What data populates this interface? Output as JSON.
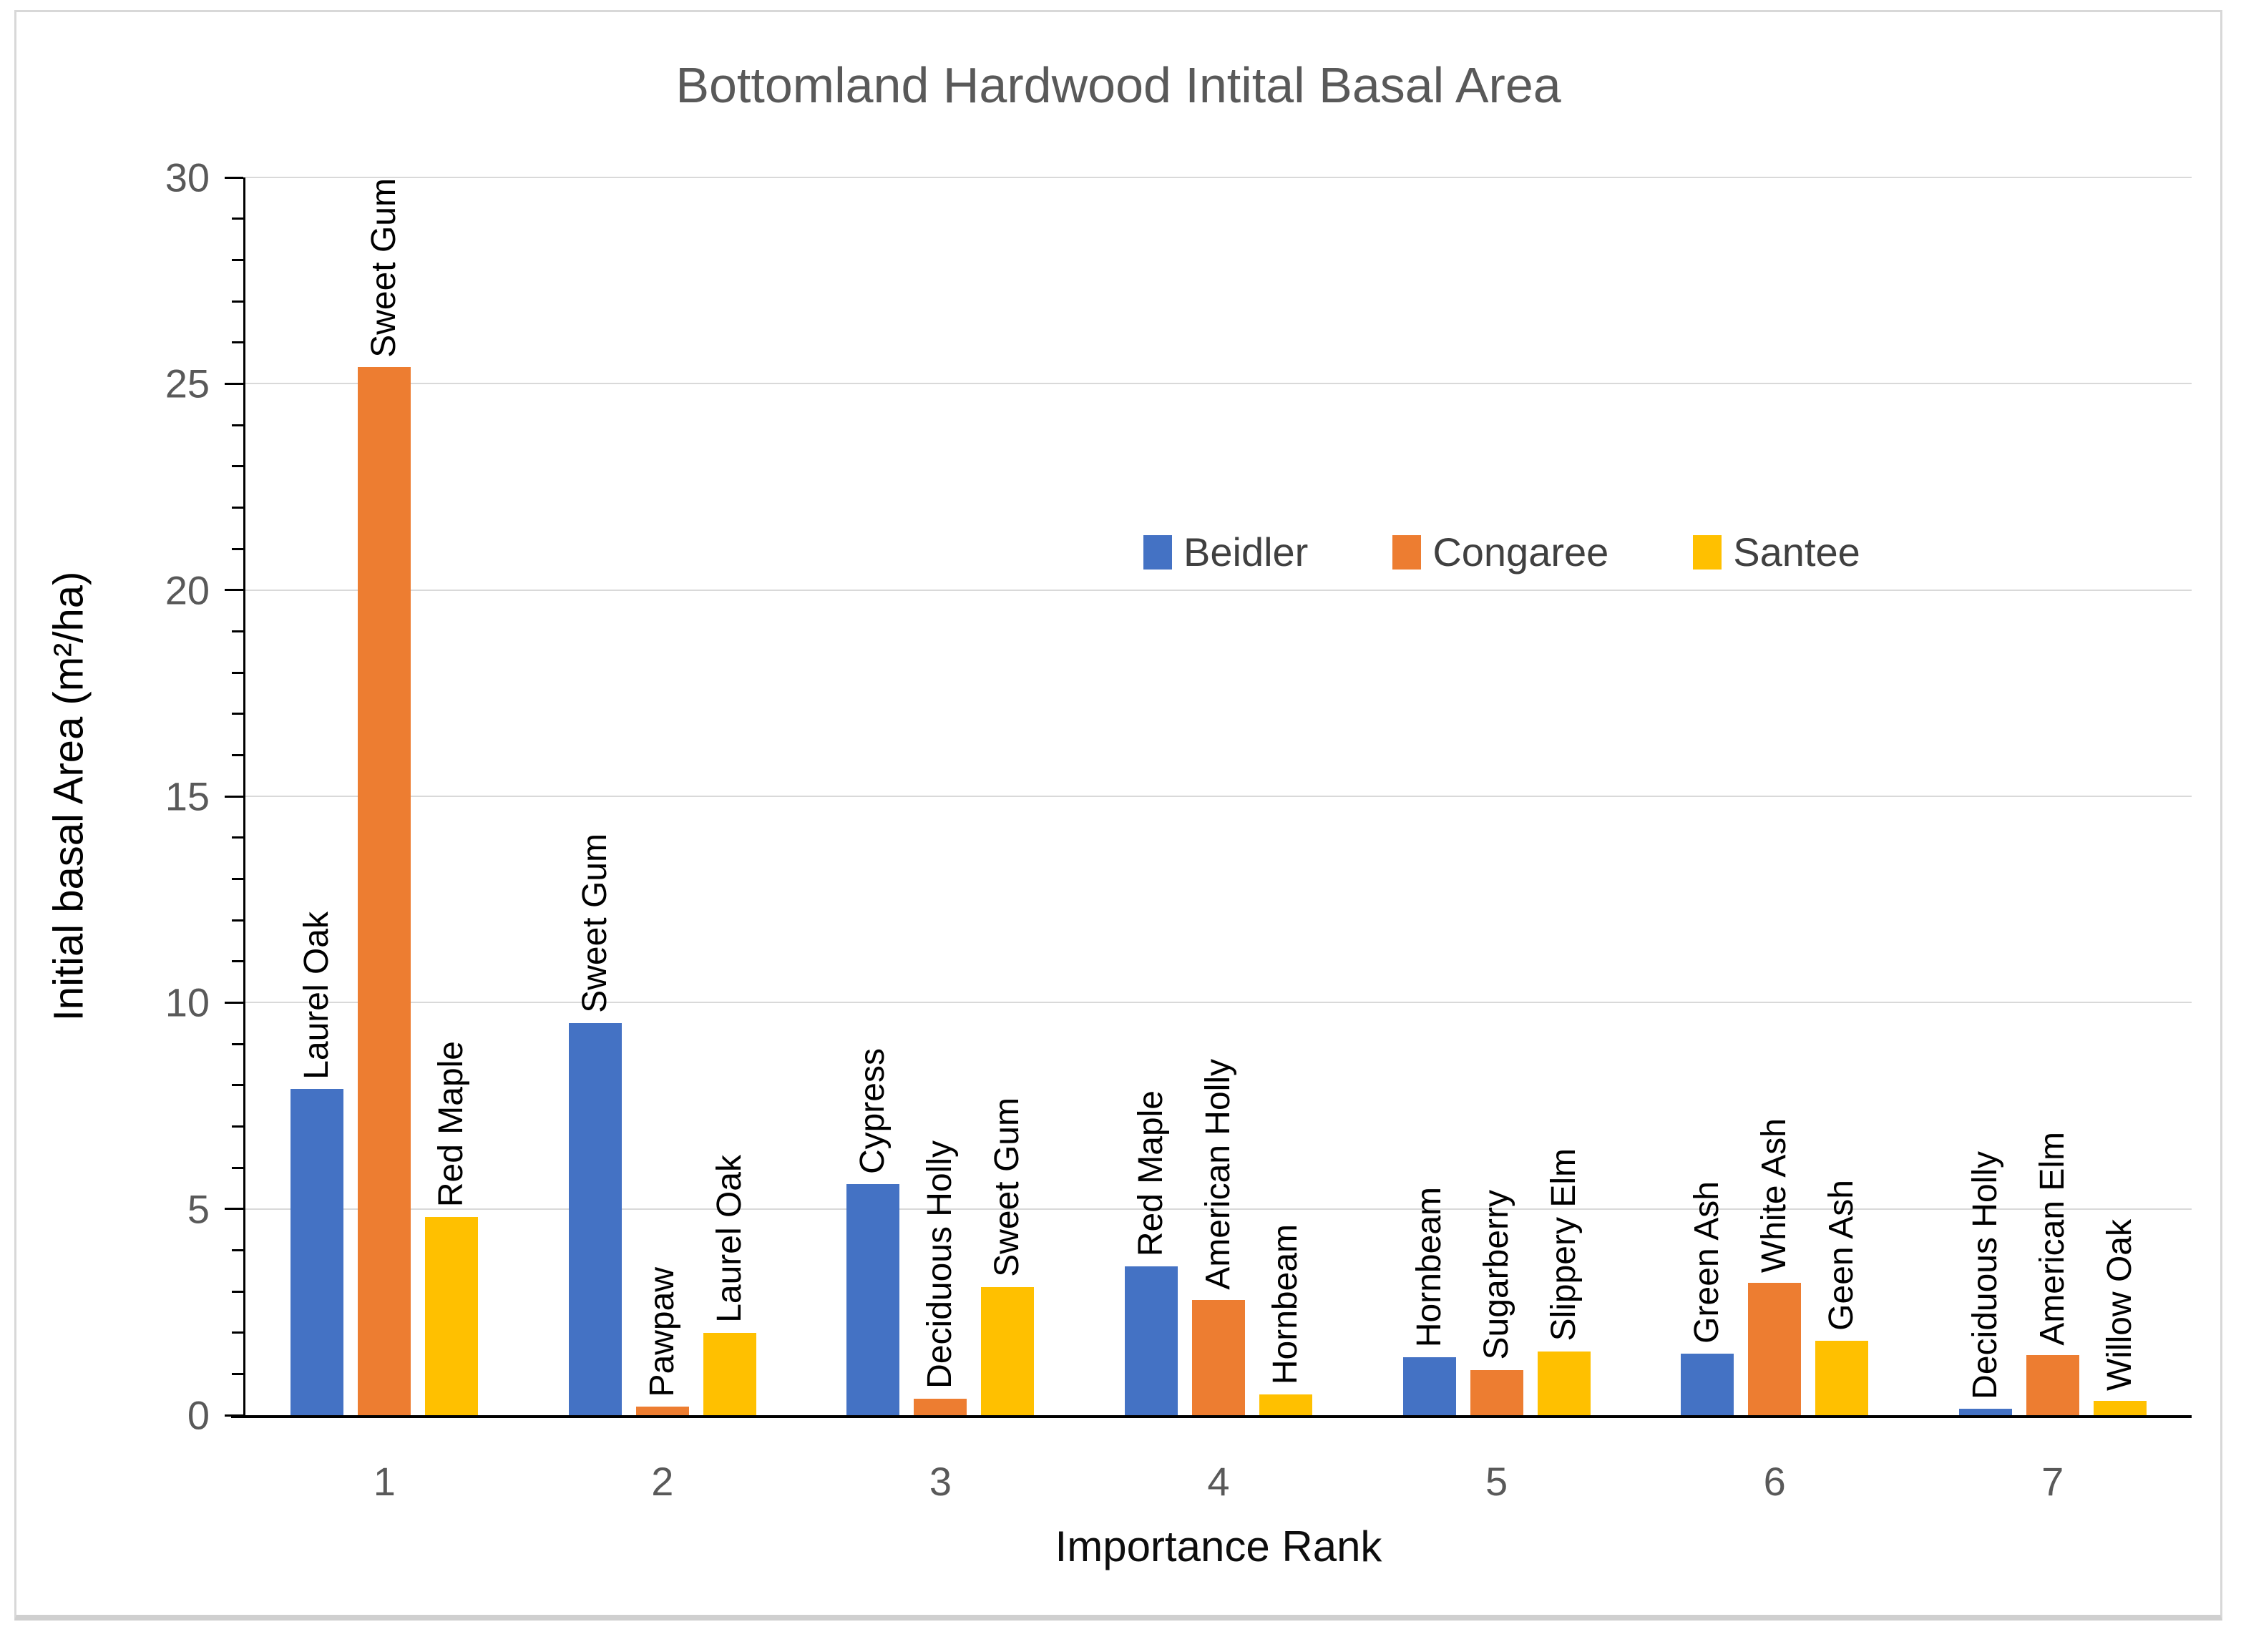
{
  "chart_data": {
    "type": "bar",
    "title": "Bottomland Hardwood Intital Basal Area",
    "xlabel": "Importance Rank",
    "ylabel": "Initial basal Area (m²/ha)",
    "categories": [
      "1",
      "2",
      "3",
      "4",
      "5",
      "6",
      "7"
    ],
    "y_ticks": [
      0,
      5,
      10,
      15,
      20,
      25,
      30
    ],
    "ylim": [
      0,
      30
    ],
    "minor_tick_interval": 1,
    "grid": "horizontal gridlines every 5 units, light gray",
    "legend_position": "inside plot, upper right, horizontal",
    "series": [
      {
        "name": "Beidler",
        "color": "#4472C4",
        "values": [
          7.9,
          9.5,
          5.6,
          3.6,
          1.4,
          1.5,
          0.15
        ],
        "bar_labels": [
          "Laurel Oak",
          "Sweet Gum",
          "Cypress",
          "Red Maple",
          "Hornbeam",
          "Green Ash",
          "Deciduous Holly"
        ]
      },
      {
        "name": "Congaree",
        "color": "#ED7D31",
        "values": [
          25.4,
          0.2,
          0.4,
          2.8,
          1.1,
          3.2,
          1.45
        ],
        "bar_labels": [
          "Sweet Gum",
          "Pawpaw",
          "Deciduous Holly",
          "American Holly",
          "Sugarberry",
          "White Ash",
          "American Elm"
        ]
      },
      {
        "name": "Santee",
        "color": "#FFC000",
        "values": [
          4.8,
          2.0,
          3.1,
          0.5,
          1.55,
          1.8,
          0.35
        ],
        "bar_labels": [
          "Red Maple",
          "Laurel Oak",
          "Sweet Gum",
          "Hornbeam",
          "Slippery Elm",
          "Geen Ash",
          "Willow Oak"
        ]
      }
    ]
  },
  "style": {
    "gridline_color": "#d9d9d9",
    "axis_line_color": "#000000",
    "tick_label_color": "#595959",
    "title_color": "#595959",
    "bar_label_color": "#000000",
    "legend_label_color": "#404040",
    "frame_border_color": "#d8d8d8"
  }
}
